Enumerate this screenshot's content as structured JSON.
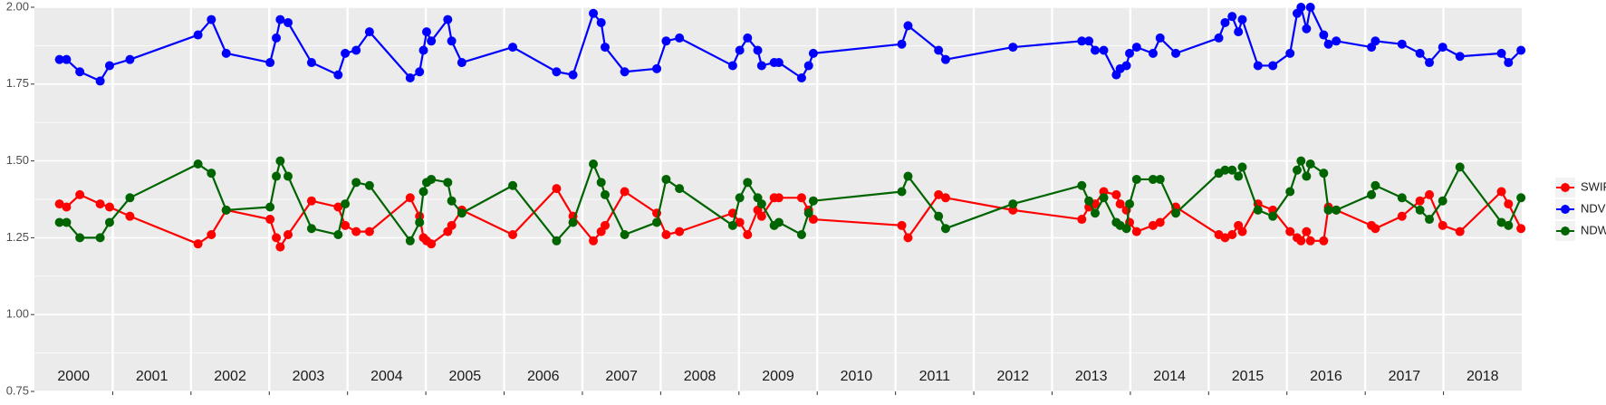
{
  "chart_data": {
    "type": "line",
    "x": [
      2000.32,
      2000.41,
      2000.58,
      2000.84,
      2000.96,
      2001.22,
      2002.09,
      2002.26,
      2002.45,
      2003.01,
      2003.09,
      2003.14,
      2003.24,
      2003.54,
      2003.88,
      2003.97,
      2004.11,
      2004.28,
      2004.8,
      2004.92,
      2004.97,
      2005.01,
      2005.07,
      2005.28,
      2005.33,
      2005.46,
      2006.11,
      2006.67,
      2006.88,
      2007.14,
      2007.24,
      2007.29,
      2007.54,
      2007.95,
      2008.07,
      2008.24,
      2008.92,
      2009.01,
      2009.11,
      2009.24,
      2009.29,
      2009.45,
      2009.51,
      2009.8,
      2009.89,
      2009.95,
      2011.08,
      2011.16,
      2011.55,
      2011.64,
      2012.5,
      2013.38,
      2013.47,
      2013.55,
      2013.66,
      2013.82,
      2013.87,
      2013.95,
      2013.99,
      2014.08,
      2014.29,
      2014.38,
      2014.58,
      2015.13,
      2015.21,
      2015.3,
      2015.38,
      2015.43,
      2015.63,
      2015.82,
      2016.04,
      2016.13,
      2016.18,
      2016.25,
      2016.3,
      2016.47,
      2016.53,
      2016.63,
      2017.08,
      2017.13,
      2017.47,
      2017.7,
      2017.82,
      2017.99,
      2018.21,
      2018.74,
      2018.83,
      2018.99
    ],
    "series": [
      {
        "name": "SWIR",
        "color": "#ff0000",
        "values": [
          1.36,
          1.35,
          1.39,
          1.36,
          1.35,
          1.32,
          1.23,
          1.26,
          1.34,
          1.31,
          1.25,
          1.22,
          1.26,
          1.37,
          1.35,
          1.29,
          1.27,
          1.27,
          1.38,
          1.32,
          1.25,
          1.24,
          1.23,
          1.27,
          1.29,
          1.34,
          1.26,
          1.41,
          1.32,
          1.24,
          1.27,
          1.29,
          1.4,
          1.33,
          1.26,
          1.27,
          1.33,
          1.3,
          1.26,
          1.34,
          1.32,
          1.38,
          1.38,
          1.38,
          1.34,
          1.31,
          1.29,
          1.25,
          1.39,
          1.38,
          1.34,
          1.31,
          1.35,
          1.36,
          1.4,
          1.39,
          1.36,
          1.34,
          1.3,
          1.27,
          1.29,
          1.3,
          1.35,
          1.26,
          1.25,
          1.26,
          1.29,
          1.27,
          1.36,
          1.34,
          1.27,
          1.25,
          1.24,
          1.27,
          1.24,
          1.24,
          1.35,
          1.34,
          1.29,
          1.28,
          1.32,
          1.37,
          1.39,
          1.29,
          1.27,
          1.4,
          1.36,
          1.28
        ]
      },
      {
        "name": "NDVI",
        "color": "#0000ff",
        "values": [
          1.83,
          1.83,
          1.79,
          1.76,
          1.81,
          1.83,
          1.91,
          1.96,
          1.85,
          1.82,
          1.9,
          1.96,
          1.95,
          1.82,
          1.78,
          1.85,
          1.86,
          1.92,
          1.77,
          1.79,
          1.86,
          1.92,
          1.89,
          1.96,
          1.89,
          1.82,
          1.87,
          1.79,
          1.78,
          1.98,
          1.95,
          1.87,
          1.79,
          1.8,
          1.89,
          1.9,
          1.81,
          1.86,
          1.9,
          1.86,
          1.81,
          1.82,
          1.82,
          1.77,
          1.81,
          1.85,
          1.88,
          1.94,
          1.86,
          1.83,
          1.87,
          1.89,
          1.89,
          1.86,
          1.86,
          1.78,
          1.8,
          1.81,
          1.85,
          1.87,
          1.85,
          1.9,
          1.85,
          1.9,
          1.95,
          1.97,
          1.92,
          1.96,
          1.81,
          1.81,
          1.85,
          1.98,
          2.0,
          1.93,
          2.0,
          1.91,
          1.88,
          1.89,
          1.87,
          1.89,
          1.88,
          1.85,
          1.82,
          1.87,
          1.84,
          1.85,
          1.82,
          1.86
        ]
      },
      {
        "name": "NDWI",
        "color": "#006400",
        "values": [
          1.3,
          1.3,
          1.25,
          1.25,
          1.3,
          1.38,
          1.49,
          1.46,
          1.34,
          1.35,
          1.45,
          1.5,
          1.45,
          1.28,
          1.26,
          1.36,
          1.43,
          1.42,
          1.24,
          1.3,
          1.4,
          1.43,
          1.44,
          1.43,
          1.37,
          1.33,
          1.42,
          1.24,
          1.3,
          1.49,
          1.43,
          1.39,
          1.26,
          1.3,
          1.44,
          1.41,
          1.29,
          1.38,
          1.43,
          1.38,
          1.36,
          1.29,
          1.3,
          1.26,
          1.33,
          1.37,
          1.4,
          1.45,
          1.32,
          1.28,
          1.36,
          1.42,
          1.37,
          1.33,
          1.38,
          1.3,
          1.29,
          1.28,
          1.36,
          1.44,
          1.44,
          1.44,
          1.33,
          1.46,
          1.47,
          1.47,
          1.45,
          1.48,
          1.34,
          1.32,
          1.4,
          1.47,
          1.5,
          1.45,
          1.49,
          1.46,
          1.34,
          1.34,
          1.39,
          1.42,
          1.38,
          1.34,
          1.31,
          1.37,
          1.48,
          1.3,
          1.29,
          1.38
        ]
      }
    ],
    "xlim": [
      2000,
      2019
    ],
    "xticks": [
      2001,
      2002,
      2003,
      2004,
      2005,
      2006,
      2007,
      2008,
      2009,
      2010,
      2011,
      2012,
      2013,
      2014,
      2015,
      2016,
      2017,
      2018
    ],
    "ylim": [
      0.75,
      2.0
    ],
    "yticks": [
      {
        "value": 0.75,
        "label": "0.75"
      },
      {
        "value": 1.0,
        "label": "1.00"
      },
      {
        "value": 1.25,
        "label": "1.25"
      },
      {
        "value": 1.5,
        "label": "1.50"
      },
      {
        "value": 1.75,
        "label": "1.75"
      },
      {
        "value": 2.0,
        "label": "2.00"
      }
    ],
    "grid": true,
    "legend": "right",
    "annotations": [
      {
        "text": "2000",
        "x": 2000.5
      },
      {
        "text": "2001",
        "x": 2001.5
      },
      {
        "text": "2002",
        "x": 2002.5
      },
      {
        "text": "2003",
        "x": 2003.5
      },
      {
        "text": "2004",
        "x": 2004.5
      },
      {
        "text": "2005",
        "x": 2005.5
      },
      {
        "text": "2006",
        "x": 2006.5
      },
      {
        "text": "2007",
        "x": 2007.5
      },
      {
        "text": "2008",
        "x": 2008.5
      },
      {
        "text": "2009",
        "x": 2009.5
      },
      {
        "text": "2010",
        "x": 2010.5
      },
      {
        "text": "2011",
        "x": 2011.5
      },
      {
        "text": "2012",
        "x": 2012.5
      },
      {
        "text": "2013",
        "x": 2013.5
      },
      {
        "text": "2014",
        "x": 2014.5
      },
      {
        "text": "2015",
        "x": 2015.5
      },
      {
        "text": "2016",
        "x": 2016.5
      },
      {
        "text": "2017",
        "x": 2017.5
      },
      {
        "text": "2018",
        "x": 2018.5
      }
    ]
  }
}
